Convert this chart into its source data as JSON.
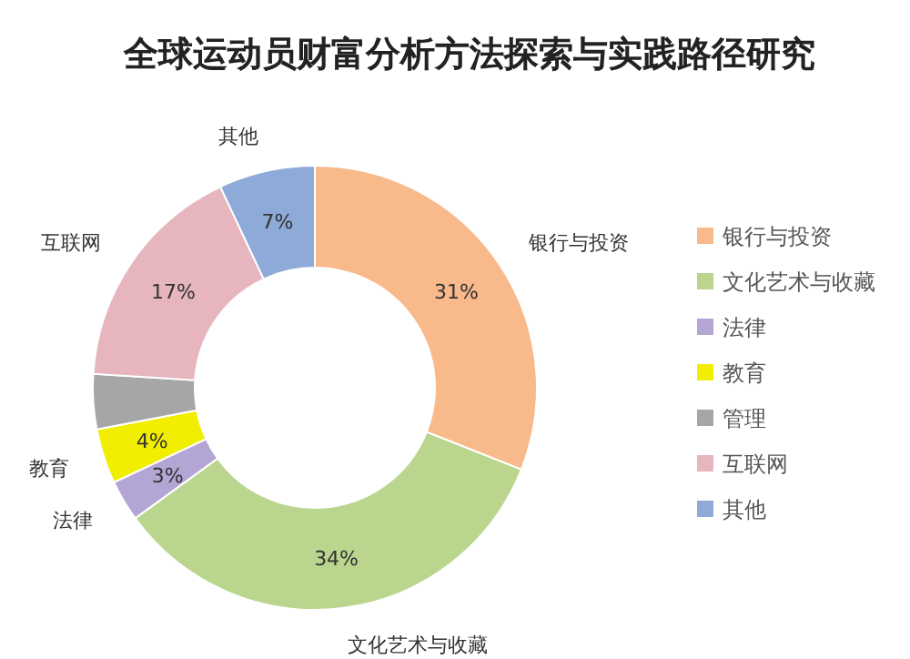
{
  "chart_data": {
    "type": "donut",
    "title": "全球运动员财富分析方法探索与实践路径研究",
    "categories": [
      "银行与投资",
      "文化艺术与收藏",
      "法律",
      "教育",
      "管理",
      "互联网",
      "其他"
    ],
    "values": [
      31,
      34,
      3,
      4,
      4,
      17,
      7
    ],
    "value_labels": [
      "31%",
      "34%",
      "3%",
      "4%",
      null,
      "17%",
      "7%"
    ],
    "colors": [
      "#f8b98b",
      "#b9d58e",
      "#b3a6d4",
      "#f2ee00",
      "#a6a6a6",
      "#e6b5bd",
      "#8eaad8"
    ],
    "legend": "right"
  }
}
